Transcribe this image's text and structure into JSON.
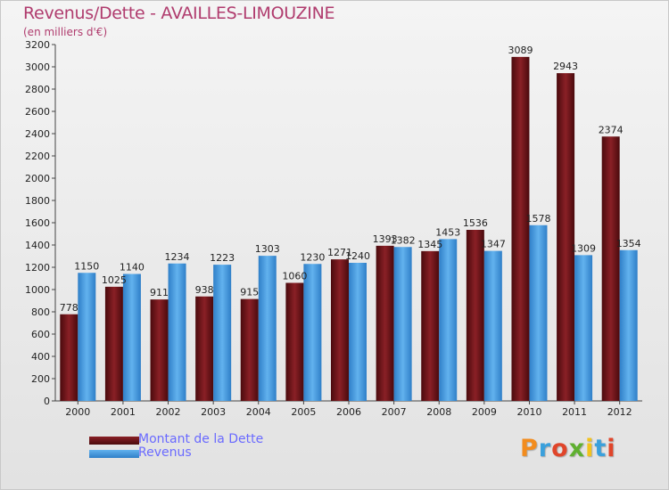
{
  "header": {
    "title": "Revenus/Dette - AVAILLES-LIMOUZINE",
    "subtitle": "(en milliers d'€)"
  },
  "legend": [
    {
      "label": "Montant de la Dette",
      "color": "#6e1216"
    },
    {
      "label": "Revenus",
      "color": "#3d93dc"
    }
  ],
  "logo": {
    "text": "Proxiti",
    "colors": [
      "#f28c1e",
      "#3aa0dc",
      "#e0452a",
      "#5fb030",
      "#f2c21e",
      "#3aa0dc",
      "#e0452a"
    ]
  },
  "chart_data": {
    "type": "bar",
    "title": "Revenus/Dette - AVAILLES-LIMOUZINE",
    "ylabel": "(en milliers d'€)",
    "ylim": [
      0,
      3200
    ],
    "yticks": [
      0,
      200,
      400,
      600,
      800,
      1000,
      1200,
      1400,
      1600,
      1800,
      2000,
      2200,
      2400,
      2600,
      2800,
      3000,
      3200
    ],
    "grid": false,
    "legend_position": "bottom-left",
    "categories": [
      "2000",
      "2001",
      "2002",
      "2003",
      "2004",
      "2005",
      "2006",
      "2007",
      "2008",
      "2009",
      "2010",
      "2011",
      "2012"
    ],
    "series": [
      {
        "name": "Montant de la Dette",
        "color": "#6e1216",
        "values": [
          778,
          1025,
          911,
          938,
          915,
          1060,
          1271,
          1393,
          1345,
          1536,
          3089,
          2943,
          2374
        ]
      },
      {
        "name": "Revenus",
        "color": "#3d93dc",
        "values": [
          1150,
          1140,
          1234,
          1223,
          1303,
          1230,
          1240,
          1382,
          1453,
          1347,
          1578,
          1309,
          1354
        ]
      }
    ]
  }
}
